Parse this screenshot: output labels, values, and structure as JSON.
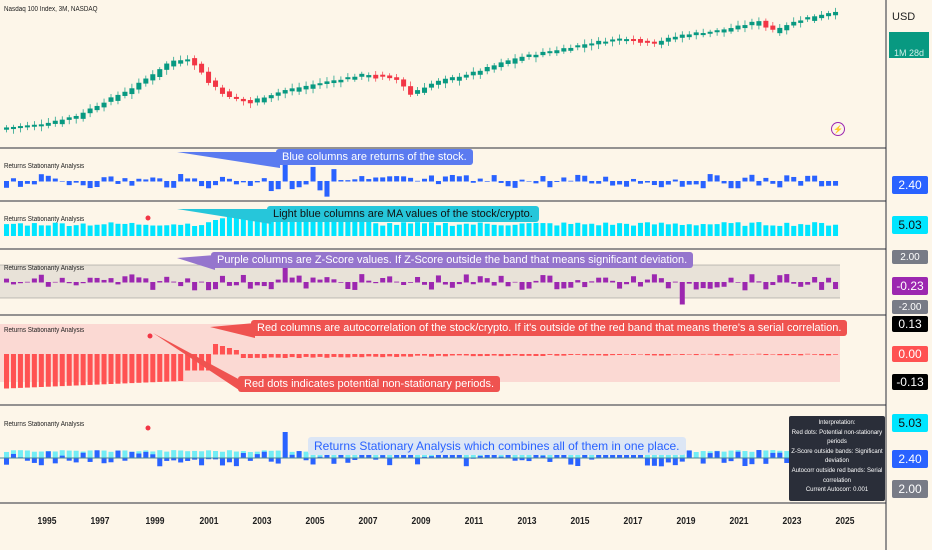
{
  "header": {
    "symbol_title": "Nasdaq 100 Index, 3M, NASDAQ",
    "currency": "USD",
    "price_tag": "1M 28d"
  },
  "panes": [
    {
      "title": "Returns Stationarity Analysis",
      "value_labels": [
        "2.40"
      ]
    },
    {
      "title": "Returns Stationarity Analysis",
      "value_labels": [
        "5.03"
      ]
    },
    {
      "title": "Returns Stationarity Analysis",
      "value_labels": [
        "2.00",
        "-0.23",
        "-2.00"
      ]
    },
    {
      "title": "Returns Stationarity Analysis",
      "value_labels": [
        "0.13",
        "0.00",
        "-0.13"
      ]
    },
    {
      "title": "Returns Stationarity Analysis",
      "value_labels": [
        "5.03",
        "2.40",
        "2.00"
      ]
    }
  ],
  "annotations": {
    "blue": "Blue columns are returns of the stock.",
    "lightblue": "Light blue columns are MA values of the stock/crypto.",
    "purple": "Purple columns are Z-Score values. If Z-Score outside the band that means significant deviation.",
    "red": "Red columns are autocorrelation of the stock/crypto. If it's outside of the red band that means there's a serial correlation.",
    "reddots": "Red dots indicates potential non-stationary periods.",
    "combined": "Returns Stationary Analysis which combines all of them in one place."
  },
  "info_panel": [
    "Interpretation:",
    "Red dots: Potential non-stationary periods",
    "Z-Score outside bands: Significant deviation",
    "Autocorr outside red bands: Serial correlation",
    "Current Autocorr: 0.001"
  ],
  "x_axis": {
    "years": [
      "1995",
      "1997",
      "1999",
      "2001",
      "2003",
      "2005",
      "2007",
      "2009",
      "2011",
      "2013",
      "2015",
      "2017",
      "2019",
      "2021",
      "2023",
      "2025"
    ]
  },
  "colors": {
    "background": "#fdf6e9",
    "up_candle": "#089981",
    "down_candle": "#f23645",
    "returns_blue": "#2962ff",
    "ma_cyan": "#00e5ff",
    "zscore_purple": "#9c27b0",
    "autocorr_red": "#ff5252",
    "callout_blue": "#5b7bf0",
    "callout_cyan": "#26c6da",
    "callout_purple": "#9575cd",
    "callout_red": "#ef5350",
    "callout_combined_bg": "#dce6f5",
    "callout_combined_text": "#2962ff"
  }
}
